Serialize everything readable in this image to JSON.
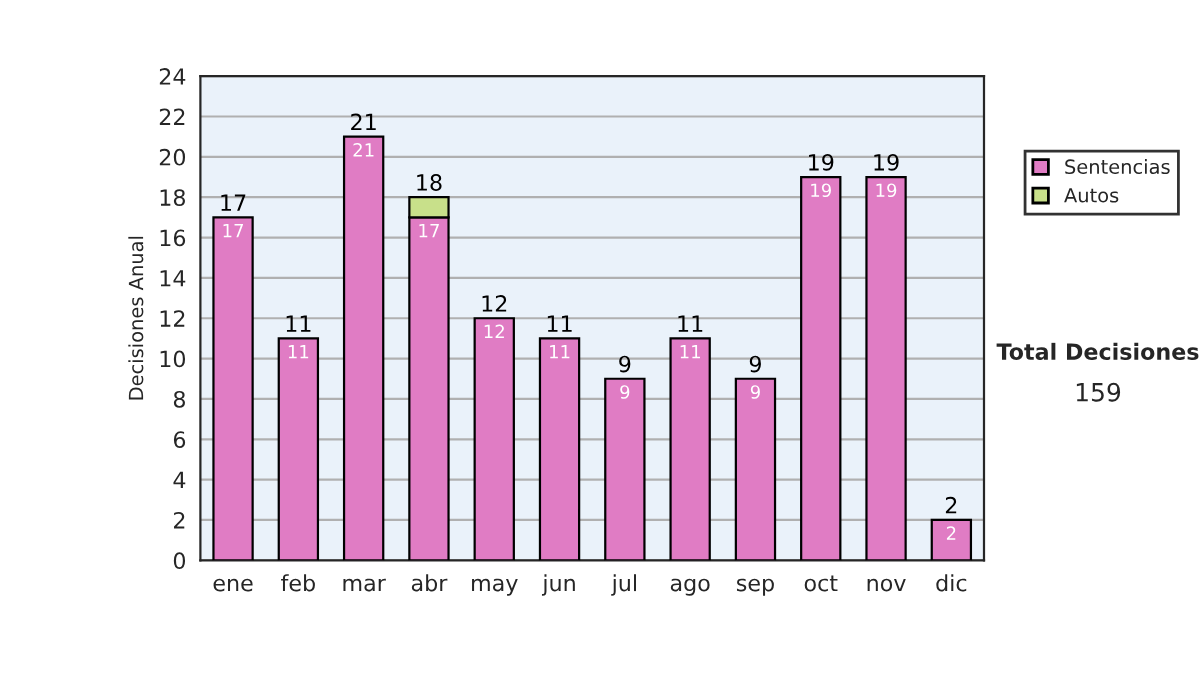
{
  "chart_data": {
    "type": "bar",
    "stacked": true,
    "ylabel": "Decisiones Anual",
    "categories": [
      "ene",
      "feb",
      "mar",
      "abr",
      "may",
      "jun",
      "jul",
      "ago",
      "sep",
      "oct",
      "nov",
      "dic"
    ],
    "series": [
      {
        "name": "Sentencias",
        "color": "#e07cc4",
        "values": [
          17,
          11,
          21,
          17,
          12,
          11,
          9,
          11,
          9,
          19,
          19,
          2
        ],
        "value_labels": [
          "17",
          "11",
          "21",
          "17",
          "12",
          "11",
          "9",
          "11",
          "9",
          "19",
          "19",
          "2"
        ]
      },
      {
        "name": "Autos",
        "color": "#c8e08a",
        "values": [
          null,
          null,
          null,
          1,
          null,
          null,
          null,
          null,
          null,
          null,
          null,
          null
        ]
      }
    ],
    "totals": [
      "17",
      "11",
      "21",
      "18",
      "12",
      "11",
      "9",
      "11",
      "9",
      "19",
      "19",
      "2"
    ],
    "ylim": [
      0,
      24
    ],
    "yticks": [
      0,
      2,
      4,
      6,
      8,
      10,
      12,
      14,
      16,
      18,
      20,
      22,
      24
    ],
    "grid": "y",
    "legend": "right",
    "annotations": [
      "Total Decisiones",
      "159"
    ]
  }
}
